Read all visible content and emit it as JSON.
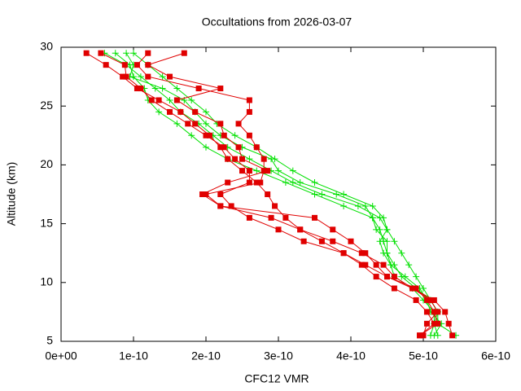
{
  "chart_data": {
    "type": "line",
    "title": "Occultations from 2026-03-07",
    "xlabel": "CFC12 VMR",
    "ylabel": "Altitude (km)",
    "xlim": [
      0,
      6e-10
    ],
    "ylim": [
      5,
      30
    ],
    "xticks": [
      {
        "value": 0,
        "label": "0e+00"
      },
      {
        "value": 1e-10,
        "label": "1e-10"
      },
      {
        "value": 2e-10,
        "label": "2e-10"
      },
      {
        "value": 3e-10,
        "label": "3e-10"
      },
      {
        "value": 4e-10,
        "label": "4e-10"
      },
      {
        "value": 5e-10,
        "label": "5e-10"
      },
      {
        "value": 6e-10,
        "label": "6e-10"
      }
    ],
    "yticks": [
      5,
      10,
      15,
      20,
      25,
      30
    ],
    "series": [
      {
        "color": "#00e000",
        "marker": "plus",
        "y": [
          29.5,
          28.5,
          27.5,
          26.5,
          25.5,
          24.5,
          23.5,
          22.5,
          21.5,
          20.5,
          19.5,
          18.5,
          17.5,
          16.5,
          15.5,
          14.5,
          13.5,
          12.5,
          11.5,
          10.5,
          9.5,
          8.5,
          7.5,
          6.5,
          5.5
        ],
        "x": [
          6e-11,
          9e-11,
          1.1e-10,
          1.3e-10,
          1.5e-10,
          1.65e-10,
          1.9e-10,
          2.1e-10,
          2.3e-10,
          2.6e-10,
          2.9e-10,
          3.2e-10,
          3.6e-10,
          4.1e-10,
          4.4e-10,
          4.5e-10,
          4.6e-10,
          4.7e-10,
          4.8e-10,
          4.9e-10,
          5e-10,
          5.1e-10,
          5.2e-10,
          5.2e-10,
          5.45e-10
        ]
      },
      {
        "color": "#00e000",
        "marker": "plus",
        "y": [
          29.5,
          28.5,
          27.5,
          26.5,
          25.5,
          24.5,
          23.5,
          22.5,
          21.5,
          20.5,
          19.5,
          18.5,
          17.5,
          16.5,
          15.5,
          14.5,
          13.5,
          12.5,
          11.5,
          10.5,
          9.5,
          8.5,
          7.5,
          6.5,
          5.5
        ],
        "x": [
          7.5e-11,
          9.5e-11,
          1e-10,
          1.15e-10,
          1.2e-10,
          1.35e-10,
          1.6e-10,
          1.8e-10,
          2e-10,
          2.3e-10,
          2.7e-10,
          3.1e-10,
          3.5e-10,
          3.9e-10,
          4.3e-10,
          4.4e-10,
          4.45e-10,
          4.5e-10,
          4.55e-10,
          4.6e-10,
          4.85e-10,
          5e-10,
          5.15e-10,
          5.15e-10,
          5.1e-10
        ]
      },
      {
        "color": "#00e000",
        "marker": "plus",
        "y": [
          29.5,
          28.5,
          27.5,
          26.5,
          25.5,
          24.5,
          23.5,
          22.5,
          21.5,
          20.5,
          19.5,
          18.5,
          17.5,
          16.5,
          15.5,
          14.5,
          13.5,
          12.5,
          11.5,
          10.5,
          9.5,
          8.5,
          7.5,
          6.5,
          5.5
        ],
        "x": [
          9e-11,
          1e-10,
          9.5e-11,
          1.4e-10,
          1.7e-10,
          1.85e-10,
          2e-10,
          2.2e-10,
          2.5e-10,
          2.9e-10,
          3e-10,
          3.3e-10,
          3.8e-10,
          4.2e-10,
          4.3e-10,
          4.35e-10,
          4.5e-10,
          4.5e-10,
          4.6e-10,
          4.7e-10,
          4.9e-10,
          5.1e-10,
          5.2e-10,
          5.15e-10,
          5.2e-10
        ]
      },
      {
        "color": "#00e000",
        "marker": "plus",
        "y": [
          29.5,
          28.5,
          27.5,
          26.5,
          25.5,
          24.5,
          23.5,
          22.5,
          21.5,
          20.5,
          19.5,
          18.5,
          17.5,
          16.5,
          15.5,
          14.5,
          13.5,
          12.5,
          11.5,
          10.5,
          9.5,
          8.5,
          7.5,
          6.5,
          5.5
        ],
        "x": [
          1e-10,
          1.2e-10,
          1.4e-10,
          1.6e-10,
          1.8e-10,
          2e-10,
          2.15e-10,
          2.4e-10,
          2.7e-10,
          2.95e-10,
          3.2e-10,
          3.5e-10,
          3.9e-10,
          4.3e-10,
          4.45e-10,
          4.5e-10,
          4.4e-10,
          4.45e-10,
          4.55e-10,
          4.75e-10,
          4.95e-10,
          5.05e-10,
          5.1e-10,
          5.25e-10,
          5.15e-10
        ]
      },
      {
        "color": "#e00000",
        "marker": "square",
        "y": [
          29.5,
          28.5,
          27.5,
          26.5,
          25.5,
          24.5,
          23.5,
          22.5,
          21.5,
          20.5,
          19.5,
          18.5,
          17.5,
          16.5,
          15.5,
          14.5,
          13.5,
          12.5,
          11.5,
          10.5,
          9.5,
          8.5,
          7.5,
          6.5,
          5.5
        ],
        "x": [
          3.5e-11,
          6.2e-11,
          8.5e-11,
          1.05e-10,
          1.35e-10,
          1.65e-10,
          1.85e-10,
          2.05e-10,
          2.2e-10,
          2.3e-10,
          2.5e-10,
          2.7e-10,
          2.85e-10,
          2.95e-10,
          3.1e-10,
          3.3e-10,
          3.6e-10,
          3.9e-10,
          4.15e-10,
          4.35e-10,
          4.6e-10,
          4.9e-10,
          5.05e-10,
          5.15e-10,
          4.95e-10
        ]
      },
      {
        "color": "#e00000",
        "marker": "square",
        "y": [
          29.5,
          28.5,
          27.5,
          26.5,
          25.5,
          24.5,
          23.5,
          22.5,
          21.5,
          20.5,
          19.5,
          18.5,
          17.5,
          16.5,
          15.5,
          14.5,
          13.5,
          12.5,
          11.5,
          10.5,
          9.5,
          8.5,
          7.5,
          6.5,
          5.5
        ],
        "x": [
          5.5e-11,
          8.8e-11,
          9e-11,
          1.1e-10,
          1.25e-10,
          1.5e-10,
          1.75e-10,
          2e-10,
          2.25e-10,
          2.4e-10,
          2.6e-10,
          2.6e-10,
          2.2e-10,
          2.35e-10,
          2.6e-10,
          3e-10,
          3.35e-10,
          3.9e-10,
          4.2e-10,
          4.5e-10,
          4.85e-10,
          5.1e-10,
          5.2e-10,
          5.05e-10,
          5e-10
        ]
      },
      {
        "color": "#e00000",
        "marker": "square",
        "y": [
          29.5,
          28.5,
          27.5,
          26.5,
          25.5,
          24.5,
          23.5,
          22.5,
          21.5,
          20.5,
          19.5,
          18.5,
          17.5,
          16.5,
          15.5,
          14.5,
          13.5,
          12.5,
          11.5,
          10.5,
          9.5,
          8.5,
          7.5,
          6.5,
          5.5
        ],
        "x": [
          1.2e-10,
          1.05e-10,
          1.2e-10,
          1.9e-10,
          2.6e-10,
          2.6e-10,
          2.45e-10,
          2.6e-10,
          2.7e-10,
          2.8e-10,
          2.8e-10,
          2.75e-10,
          2e-10,
          2.2e-10,
          2.9e-10,
          3.3e-10,
          3.75e-10,
          4.15e-10,
          4.45e-10,
          4.6e-10,
          4.85e-10,
          5.15e-10,
          5.3e-10,
          5.35e-10,
          5.4e-10
        ]
      },
      {
        "color": "#e00000",
        "marker": "square",
        "y": [
          29.5,
          28.5,
          27.5,
          26.5,
          25.5,
          24.5,
          23.5,
          22.5,
          21.5,
          20.5,
          19.5,
          18.5,
          17.5,
          16.5,
          15.5,
          14.5,
          13.5,
          12.5,
          11.5,
          10.5,
          9.5,
          8.5,
          7.5,
          6.5,
          5.5
        ],
        "x": [
          1.7e-10,
          1.2e-10,
          1.5e-10,
          2.2e-10,
          1.6e-10,
          1.85e-10,
          2.2e-10,
          2.25e-10,
          2.45e-10,
          2.5e-10,
          2.85e-10,
          2.3e-10,
          1.95e-10,
          2.2e-10,
          3.5e-10,
          3.75e-10,
          4e-10,
          4.2e-10,
          4.35e-10,
          4.5e-10,
          4.9e-10,
          5.05e-10,
          5.15e-10,
          5.2e-10,
          4.95e-10
        ]
      }
    ]
  }
}
